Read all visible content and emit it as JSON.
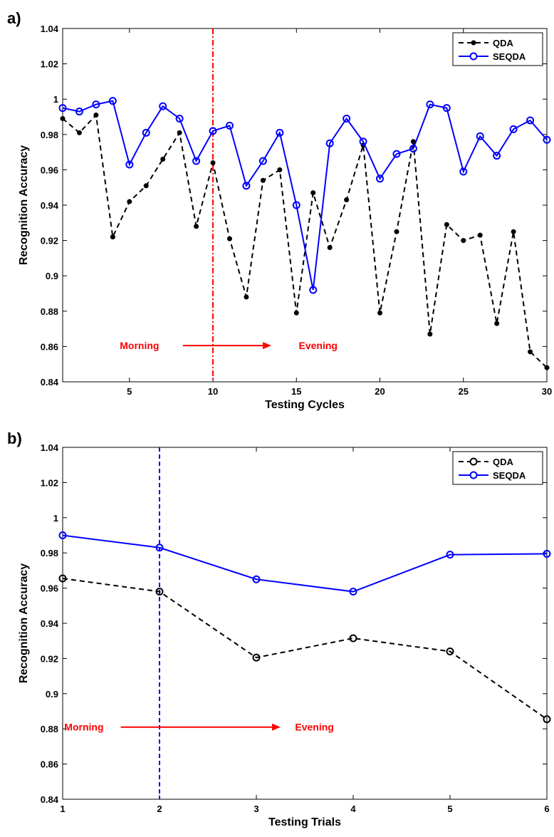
{
  "chart_data": [
    {
      "type": "line",
      "panel_label": "a)",
      "xlabel": "Testing Cycles",
      "ylabel": "Recognition Accuracy",
      "xlim": [
        1,
        30
      ],
      "ylim": [
        0.84,
        1.04
      ],
      "xticks": [
        5,
        10,
        15,
        20,
        25,
        30
      ],
      "xtick_labels": [
        "5",
        "10",
        "15",
        "20",
        "25",
        "30"
      ],
      "yticks": [
        0.84,
        0.86,
        0.88,
        0.9,
        0.92,
        0.94,
        0.96,
        0.98,
        1,
        1.02,
        1.04
      ],
      "ytick_labels": [
        "0.84",
        "0.86",
        "0.88",
        "0.9",
        "0.92",
        "0.94",
        "0.96",
        "0.98",
        "1",
        "1.02",
        "1.04"
      ],
      "grid": false,
      "legend_position": "top-right",
      "x": [
        1,
        2,
        3,
        4,
        5,
        6,
        7,
        8,
        9,
        10,
        11,
        12,
        13,
        14,
        15,
        16,
        17,
        18,
        19,
        20,
        21,
        22,
        23,
        24,
        25,
        26,
        27,
        28,
        29,
        30
      ],
      "series": [
        {
          "name": "QDA",
          "color": "#000000",
          "line_style": "dashed",
          "marker": "filled-dot",
          "values": [
            0.989,
            0.981,
            0.991,
            0.922,
            0.942,
            0.951,
            0.966,
            0.981,
            0.928,
            0.964,
            0.921,
            0.888,
            0.954,
            0.96,
            0.879,
            0.947,
            0.916,
            0.943,
            0.974,
            0.879,
            0.925,
            0.976,
            0.867,
            0.929,
            0.92,
            0.923,
            0.873,
            0.925,
            0.857,
            0.848
          ]
        },
        {
          "name": "SEQDA",
          "color": "#0000ff",
          "line_style": "solid",
          "marker": "open-circle",
          "values": [
            0.995,
            0.993,
            0.997,
            0.999,
            0.963,
            0.981,
            0.996,
            0.989,
            0.965,
            0.982,
            0.985,
            0.951,
            0.965,
            0.981,
            0.94,
            0.892,
            0.975,
            0.989,
            0.976,
            0.955,
            0.969,
            0.972,
            0.997,
            0.995,
            0.959,
            0.979,
            0.968,
            0.983,
            0.988,
            0.977
          ]
        }
      ],
      "marker_line": {
        "x": 10,
        "color": "#ff0000",
        "style": "dash-dot"
      },
      "annotations": {
        "start_label": "Morning",
        "end_label": "Evening",
        "color": "#ff0000",
        "arrow_x": [
          8.2,
          13.5
        ],
        "y": 0.8605,
        "start_x": 5.6,
        "end_x": 16.3
      }
    },
    {
      "type": "line",
      "panel_label": "b)",
      "xlabel": "Testing Trials",
      "ylabel": "Recognition Accuracy",
      "xlim": [
        1,
        6
      ],
      "ylim": [
        0.84,
        1.04
      ],
      "xticks": [
        1,
        2,
        3,
        4,
        5,
        6
      ],
      "xtick_labels": [
        "1",
        "2",
        "3",
        "4",
        "5",
        "6"
      ],
      "yticks": [
        0.84,
        0.86,
        0.88,
        0.9,
        0.92,
        0.94,
        0.96,
        0.98,
        1,
        1.02,
        1.04
      ],
      "ytick_labels": [
        "0.84",
        "0.86",
        "0.88",
        "0.9",
        "0.92",
        "0.94",
        "0.96",
        "0.98",
        "1",
        "1.02",
        "1.04"
      ],
      "grid": false,
      "legend_position": "top-right",
      "x": [
        1,
        2,
        3,
        4,
        5,
        6
      ],
      "series": [
        {
          "name": "QDA",
          "color": "#000000",
          "line_style": "dashed",
          "marker": "open-circle",
          "values": [
            0.9655,
            0.958,
            0.9205,
            0.9315,
            0.924,
            0.8855
          ]
        },
        {
          "name": "SEQDA",
          "color": "#0000ff",
          "line_style": "solid",
          "marker": "open-circle",
          "values": [
            0.99,
            0.983,
            0.965,
            0.958,
            0.979,
            0.9795
          ]
        }
      ],
      "marker_line": {
        "x": 2,
        "color": "#0000ff",
        "style": "dashed"
      },
      "annotations": {
        "start_label": "Morning",
        "end_label": "Evening",
        "color": "#ff0000",
        "arrow_x": [
          1.6,
          3.25
        ],
        "y": 0.881,
        "start_x": 1.22,
        "end_x": 3.6
      }
    }
  ]
}
